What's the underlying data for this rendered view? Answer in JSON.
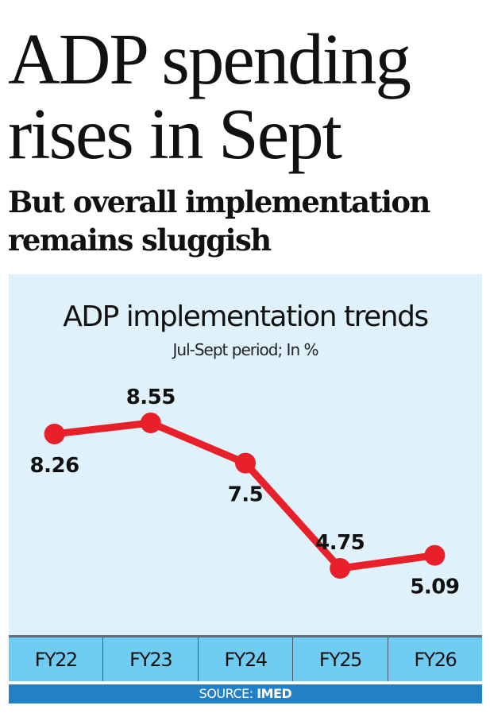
{
  "headline": {
    "line1": "ADP spending",
    "line2": "rises in Sept"
  },
  "subhead": {
    "line1": "But overall implementation",
    "line2": "remains sluggish"
  },
  "source": {
    "label": "SOURCE:",
    "value": "IMED"
  },
  "colors": {
    "line": "#e8202a",
    "panel_bg": "#dff2fb",
    "axis_band": "#6fcdf3",
    "source_bar": "#2280c4"
  },
  "chart_data": {
    "type": "line",
    "title": "ADP implementation trends",
    "subtitle": "Jul-Sept period; In %",
    "categories": [
      "FY22",
      "FY23",
      "FY24",
      "FY25",
      "FY26"
    ],
    "series": [
      {
        "name": "ADP implementation (%)",
        "values": [
          8.26,
          8.55,
          7.5,
          4.75,
          5.09
        ]
      }
    ],
    "data_labels": [
      "8.26",
      "8.55",
      "7.5",
      "4.75",
      "5.09"
    ],
    "label_positions": [
      "below",
      "above",
      "below",
      "above",
      "below"
    ],
    "xlabel": "",
    "ylabel": "",
    "ylim": [
      4.0,
      9.0
    ],
    "grid": false,
    "legend": "none"
  }
}
